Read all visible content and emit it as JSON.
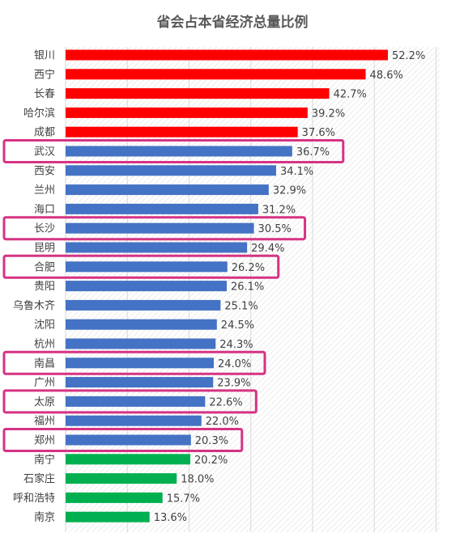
{
  "chart_data": {
    "type": "bar",
    "orientation": "horizontal",
    "title": "省会占本省经济总量比例",
    "xlim": [
      0,
      60
    ],
    "grid": true,
    "colors": {
      "red": "#ff0000",
      "blue": "#4472c4",
      "green": "#00b050",
      "highlight": "#d63384",
      "grid": "#d9d9d9",
      "hatch": "#ececec"
    },
    "categories": [
      "银川",
      "西宁",
      "长春",
      "哈尔滨",
      "成都",
      "武汉",
      "西安",
      "兰州",
      "海口",
      "长沙",
      "昆明",
      "合肥",
      "贵阳",
      "乌鲁木齐",
      "沈阳",
      "杭州",
      "南昌",
      "广州",
      "太原",
      "福州",
      "郑州",
      "南宁",
      "石家庄",
      "呼和浩特",
      "南京"
    ],
    "values": [
      52.2,
      48.6,
      42.7,
      39.2,
      37.6,
      36.7,
      34.1,
      32.9,
      31.2,
      30.5,
      29.4,
      26.2,
      26.1,
      25.1,
      24.5,
      24.3,
      24.0,
      23.9,
      22.6,
      22.0,
      20.3,
      20.2,
      18.0,
      15.7,
      13.6
    ],
    "value_labels": [
      "52.2%",
      "48.6%",
      "42.7%",
      "39.2%",
      "37.6%",
      "36.7%",
      "34.1%",
      "32.9%",
      "31.2%",
      "30.5%",
      "29.4%",
      "26.2%",
      "26.1%",
      "25.1%",
      "24.5%",
      "24.3%",
      "24.0%",
      "23.9%",
      "22.6%",
      "22.0%",
      "20.3%",
      "20.2%",
      "18.0%",
      "15.7%",
      "13.6%"
    ],
    "bar_colors": [
      "red",
      "red",
      "red",
      "red",
      "red",
      "blue",
      "blue",
      "blue",
      "blue",
      "blue",
      "blue",
      "blue",
      "blue",
      "blue",
      "blue",
      "blue",
      "blue",
      "blue",
      "blue",
      "blue",
      "blue",
      "green",
      "green",
      "green",
      "green"
    ],
    "highlighted": [
      "武汉",
      "长沙",
      "合肥",
      "南昌",
      "太原",
      "郑州"
    ]
  }
}
